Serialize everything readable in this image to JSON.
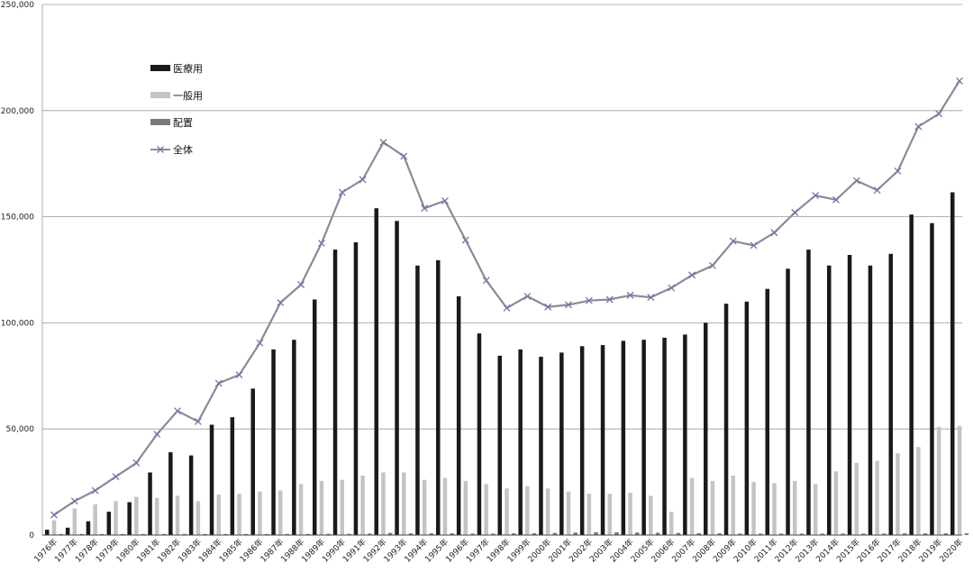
{
  "chart_data": {
    "type": "bar",
    "title": "",
    "xlabel": "",
    "ylabel": "",
    "ylim": [
      0,
      250000
    ],
    "yticks": [
      "0",
      "50,000",
      "100,000",
      "150,000",
      "200,000",
      "250,000"
    ],
    "grid": true,
    "legend_position": "top-left",
    "categories": [
      "1976年",
      "1977年",
      "1978年",
      "1979年",
      "1980年",
      "1981年",
      "1982年",
      "1983年",
      "1984年",
      "1985年",
      "1986年",
      "1987年",
      "1988年",
      "1989年",
      "1990年",
      "1991年",
      "1992年",
      "1993年",
      "1994年",
      "1995年",
      "1996年",
      "1997年",
      "1998年",
      "1999年",
      "2000年",
      "2001年",
      "2002年",
      "2003年",
      "2004年",
      "2005年",
      "2006年",
      "2007年",
      "2008年",
      "2009年",
      "2010年",
      "2011年",
      "2012年",
      "2013年",
      "2014年",
      "2015年",
      "2016年",
      "2017年",
      "2018年",
      "2019年",
      "2020年"
    ],
    "series": [
      {
        "name": "医療用",
        "kind": "bar",
        "color": "#1a1a1a",
        "values": [
          2500,
          3500,
          6500,
          11000,
          15500,
          29500,
          39000,
          37500,
          52000,
          55500,
          69000,
          87500,
          92000,
          111000,
          134500,
          138000,
          154000,
          148000,
          127000,
          129500,
          112500,
          95000,
          84500,
          87500,
          84000,
          86000,
          89000,
          89500,
          91500,
          92000,
          93000,
          94500,
          100000,
          109000,
          110000,
          116000,
          125500,
          134500,
          127000,
          132000,
          127000,
          132500,
          151000,
          147000,
          161500
        ]
      },
      {
        "name": "一般用",
        "kind": "bar",
        "color": "#c4c4c4",
        "values": [
          7000,
          12500,
          14500,
          16000,
          18000,
          17500,
          18500,
          16000,
          19000,
          19500,
          20500,
          21000,
          24000,
          25500,
          26000,
          28000,
          29500,
          29500,
          26000,
          27000,
          25500,
          24000,
          22000,
          23000,
          22000,
          20500,
          19500,
          19500,
          20000,
          18500,
          11000,
          27000,
          25500,
          28000,
          25000,
          24500,
          25500,
          24000,
          30000,
          34000,
          35000,
          38500,
          41500,
          51000,
          51500
        ]
      },
      {
        "name": "配置",
        "kind": "bar",
        "color": "#7a7a7a",
        "values": [
          500,
          500,
          500,
          500,
          500,
          500,
          500,
          500,
          500,
          500,
          500,
          500,
          500,
          600,
          600,
          700,
          1000,
          800,
          800,
          800,
          700,
          700,
          800,
          900,
          1000,
          1200,
          1300,
          1300,
          1200,
          1100,
          1000,
          900,
          800,
          700,
          700,
          700,
          700,
          700,
          700,
          700,
          700,
          800,
          800,
          800,
          800
        ]
      },
      {
        "name": "全体",
        "kind": "line",
        "color": "#8a8a9a",
        "marker": "x",
        "values": [
          9500,
          16000,
          21000,
          27500,
          34000,
          47500,
          58500,
          53500,
          71500,
          75500,
          90500,
          109500,
          118000,
          137500,
          161500,
          167500,
          185000,
          178500,
          154000,
          157500,
          139000,
          120000,
          107000,
          112500,
          107500,
          108500,
          110500,
          111000,
          113000,
          112000,
          116500,
          122500,
          127000,
          138500,
          136500,
          142500,
          152000,
          160000,
          158000,
          167000,
          162500,
          171500,
          192500,
          198500,
          214000
        ]
      }
    ]
  }
}
